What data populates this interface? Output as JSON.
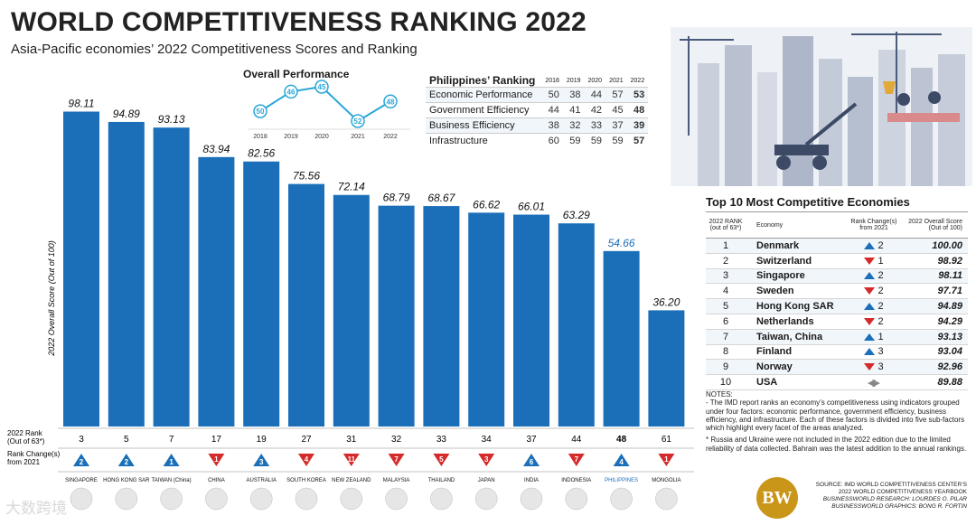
{
  "title": "WORLD COMPETITIVENESS RANKING 2022",
  "subtitle": "Asia-Pacific economies’ 2022 Competitiveness Scores and Ranking",
  "chart_data": {
    "type": "bar",
    "ylabel": "2022 Overall Score (Out of 100)",
    "ylim": [
      0,
      100
    ],
    "categories": [
      "SINGAPORE",
      "HONG KONG SAR",
      "TAIWAN (China)",
      "CHINA",
      "AUSTRALIA",
      "SOUTH KOREA",
      "NEW ZEALAND",
      "MALAYSIA",
      "THAILAND",
      "JAPAN",
      "INDIA",
      "INDONESIA",
      "PHILIPPINES",
      "MONGOLIA"
    ],
    "values": [
      98.11,
      94.89,
      93.13,
      83.94,
      82.56,
      75.56,
      72.14,
      68.79,
      68.67,
      66.62,
      66.01,
      63.29,
      54.66,
      36.2
    ],
    "value_labels": [
      "98.11",
      "94.89",
      "93.13",
      "83.94",
      "82.56",
      "75.56",
      "72.14",
      "68.79",
      "68.67",
      "66.62",
      "66.01",
      "63.29",
      "54.66",
      "36.20"
    ],
    "ranks": [
      "3",
      "5",
      "7",
      "17",
      "19",
      "27",
      "31",
      "32",
      "33",
      "34",
      "37",
      "44",
      "48",
      "61"
    ],
    "rank_changes": [
      "2",
      "2",
      "1",
      "1",
      "3",
      "4",
      "11",
      "7",
      "5",
      "3",
      "6",
      "7",
      "4",
      "1"
    ],
    "rank_directions": [
      "up",
      "up",
      "up",
      "down",
      "up",
      "down",
      "down",
      "down",
      "down",
      "down",
      "up",
      "down",
      "up",
      "down"
    ],
    "rank_label": "2022 Rank (Out of 63*)",
    "change_label": "Rank Change(s) from 2021",
    "highlight": "PHILIPPINES",
    "colors": {
      "bar": "#1b6fb9",
      "up": "#1b6fb9",
      "down": "#d42a2a",
      "highlight_text": "#1b6fb9"
    }
  },
  "overall_performance": {
    "title": "Overall Performance",
    "years": [
      "2018",
      "2019",
      "2020",
      "2021",
      "2022"
    ],
    "ranks": [
      50,
      46,
      45,
      52,
      48
    ],
    "rank_labels": [
      "50",
      "46",
      "45",
      "52",
      "48"
    ]
  },
  "ph_ranking": {
    "title": "Philippines’ Ranking",
    "years": [
      "2018",
      "2019",
      "2020",
      "2021",
      "2022"
    ],
    "rows": [
      {
        "label": "Economic Performance",
        "values": [
          "50",
          "38",
          "44",
          "57",
          "53"
        ]
      },
      {
        "label": "Government Efficiency",
        "values": [
          "44",
          "41",
          "42",
          "45",
          "48"
        ]
      },
      {
        "label": "Business Efficiency",
        "values": [
          "38",
          "32",
          "33",
          "37",
          "39"
        ]
      },
      {
        "label": "Infrastructure",
        "values": [
          "60",
          "59",
          "59",
          "59",
          "57"
        ]
      }
    ]
  },
  "top10": {
    "title": "Top 10 Most Competitive Economies",
    "headers": [
      "2022 RANK (out of 63*)",
      "Economy",
      "Rank Change(s) from 2021",
      "2022 Overall Score (Out of 100)"
    ],
    "rows": [
      {
        "rank": "1",
        "economy": "Denmark",
        "dir": "up",
        "change": "2",
        "score": "100.00"
      },
      {
        "rank": "2",
        "economy": "Switzerland",
        "dir": "down",
        "change": "1",
        "score": "98.92"
      },
      {
        "rank": "3",
        "economy": "Singapore",
        "dir": "up",
        "change": "2",
        "score": "98.11"
      },
      {
        "rank": "4",
        "economy": "Sweden",
        "dir": "down",
        "change": "2",
        "score": "97.71"
      },
      {
        "rank": "5",
        "economy": "Hong Kong SAR",
        "dir": "up",
        "change": "2",
        "score": "94.89"
      },
      {
        "rank": "6",
        "economy": "Netherlands",
        "dir": "down",
        "change": "2",
        "score": "94.29"
      },
      {
        "rank": "7",
        "economy": "Taiwan, China",
        "dir": "up",
        "change": "1",
        "score": "93.13"
      },
      {
        "rank": "8",
        "economy": "Finland",
        "dir": "up",
        "change": "3",
        "score": "93.04"
      },
      {
        "rank": "9",
        "economy": "Norway",
        "dir": "down",
        "change": "3",
        "score": "92.96"
      },
      {
        "rank": "10",
        "economy": "USA",
        "dir": "same",
        "change": "",
        "score": "89.88"
      }
    ]
  },
  "notes": {
    "heading": "NOTES:",
    "p1": "- The IMD report ranks an economy’s competitiveness using indicators grouped under four factors: economic performance, government efficiency, business efficiency, and infrastructure. Each of these factors is divided into five sub-factors which highlight every facet of the areas analyzed.",
    "p2": "* Russia and Ukraine were not included in the 2022 edition due to the limited reliability of data collected. Bahrain was the latest addition to the annual rankings."
  },
  "source": {
    "line1": "SOURCE: IMD WORLD COMPETITIVENESS CENTER’S 2022 WORLD COMPETITIVENESS YEARBOOK",
    "line2": "BUSINESSWORLD RESEARCH: LOURDES O. PILAR",
    "line3": "BUSINESSWORLD GRAPHICS: BONG R. FORTIN",
    "logo": "BW"
  },
  "watermark": "大数跨境"
}
